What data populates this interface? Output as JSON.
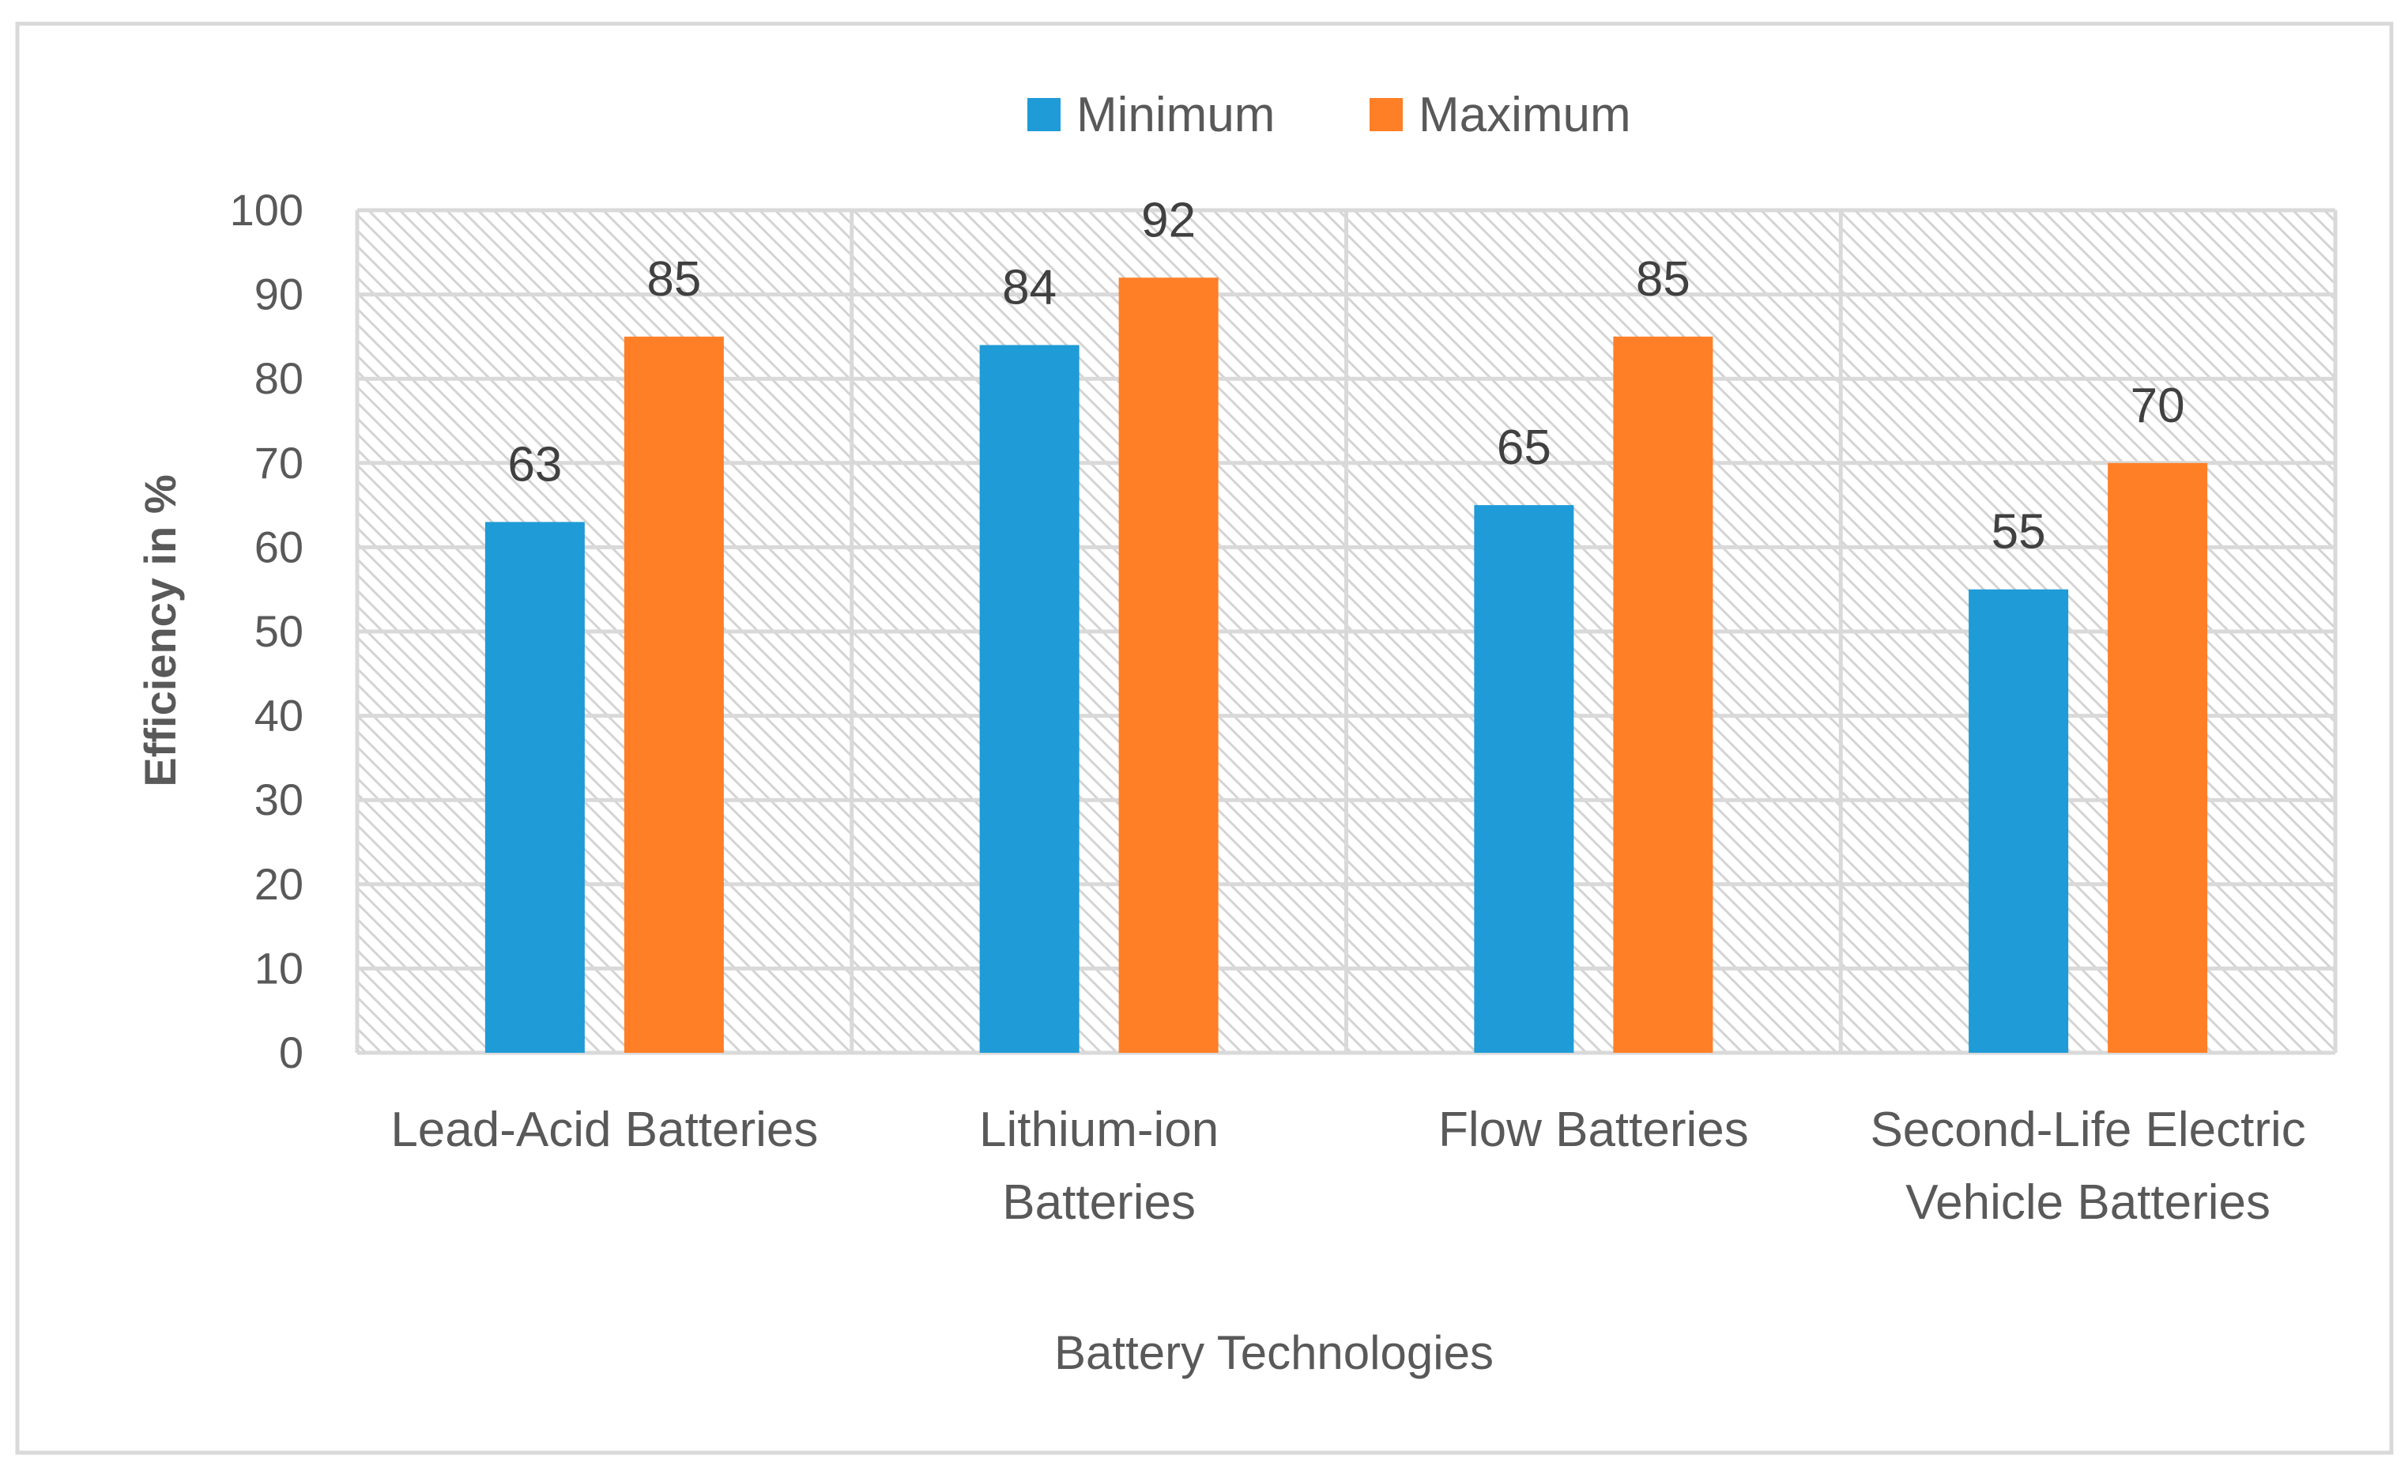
{
  "chart_data": {
    "type": "bar",
    "categories": [
      [
        "Lead-Acid Batteries"
      ],
      [
        "Lithium-ion",
        "Batteries"
      ],
      [
        "Flow Batteries"
      ],
      [
        "Second-Life Electric",
        "Vehicle Batteries"
      ]
    ],
    "series": [
      {
        "name": "Minimum",
        "values": [
          63,
          84,
          65,
          55
        ],
        "color": "#1F9BD7"
      },
      {
        "name": "Maximum",
        "values": [
          85,
          92,
          85,
          70
        ],
        "color": "#FF7F27"
      }
    ],
    "title": "",
    "xlabel": "Battery Technologies",
    "ylabel": "Efficiency in %",
    "ylim": [
      0,
      100
    ],
    "yticks": [
      0,
      10,
      20,
      30,
      40,
      50,
      60,
      70,
      80,
      90,
      100
    ],
    "grid": true,
    "plot_background": "hatched",
    "legend_position": "top",
    "data_labels": true
  }
}
